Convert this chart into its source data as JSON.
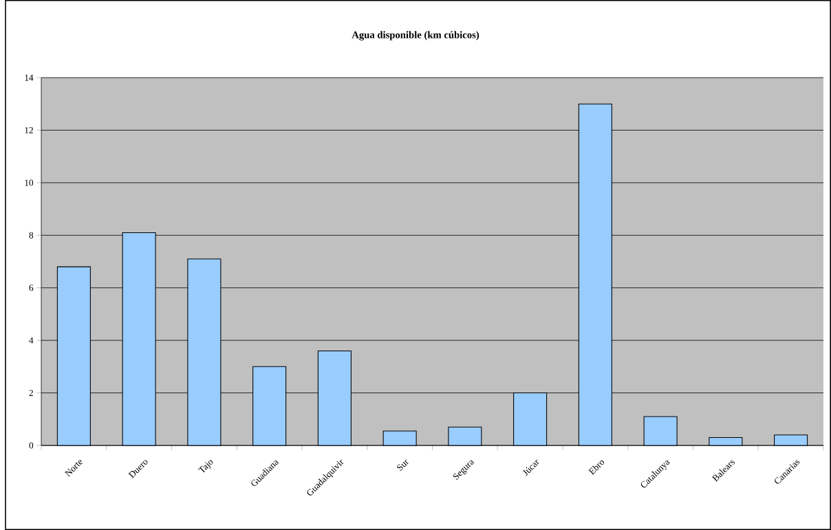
{
  "chart_data": {
    "type": "bar",
    "title": "Agua disponible (km cúbicos)",
    "categories": [
      "Norte",
      "Duero",
      "Tajo",
      "Guadiana",
      "Guadalquivir",
      "Sur",
      "Segura",
      "Júcar",
      "Ebro",
      "Catalunya",
      "Balears",
      "Canarias"
    ],
    "values": [
      6.8,
      8.1,
      7.1,
      3.0,
      3.6,
      0.55,
      0.7,
      2.0,
      13.0,
      1.1,
      0.3,
      0.4
    ],
    "color": "#99ccff",
    "ylim": [
      0,
      14
    ],
    "yticks": [
      0,
      2,
      4,
      6,
      8,
      10,
      12,
      14
    ],
    "grid": "y"
  }
}
